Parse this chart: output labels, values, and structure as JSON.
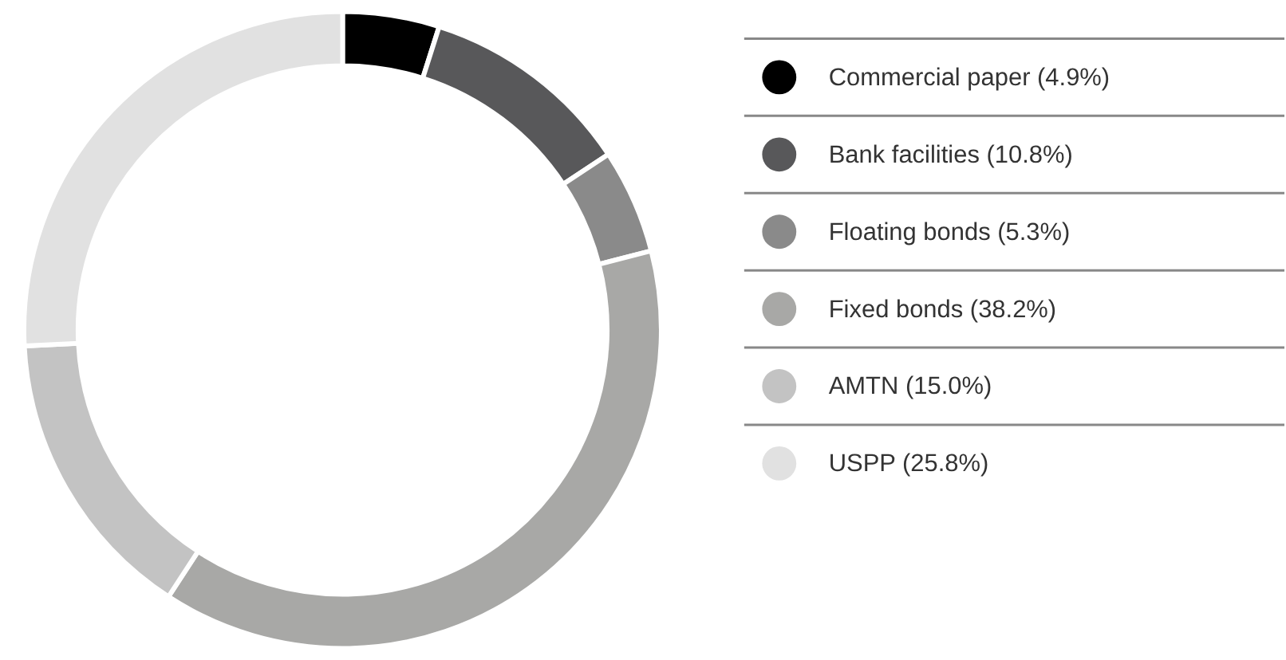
{
  "chart_data": {
    "type": "donut",
    "categories": [
      "Commercial paper (4.9%)",
      "Bank facilities (10.8%)",
      "Floating bonds (5.3%)",
      "Fixed bonds (38.2%)",
      "AMTN (15.0%)",
      "USPP (25.8%)"
    ],
    "values": [
      4.9,
      10.8,
      5.3,
      38.2,
      15.0,
      25.8
    ],
    "colors": [
      "#000000",
      "#58585a",
      "#8a8a8a",
      "#a8a8a6",
      "#c3c3c3",
      "#e1e1e1"
    ],
    "legend": "right"
  }
}
